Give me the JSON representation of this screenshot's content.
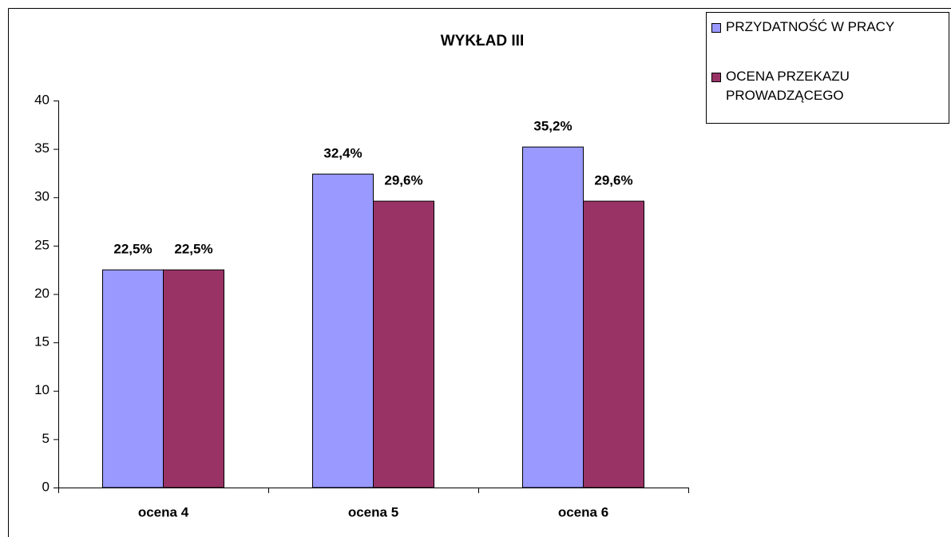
{
  "chart_data": {
    "type": "bar",
    "title": "WYKŁAD III",
    "categories": [
      "ocena 4",
      "ocena 5",
      "ocena 6"
    ],
    "series": [
      {
        "name": "PRZYDATNOŚĆ W PRACY",
        "color": "#9999ff",
        "values": [
          22.5,
          32.4,
          35.2
        ],
        "value_labels": [
          "22,5%",
          "32,4%",
          "35,2%"
        ]
      },
      {
        "name": "OCENA PRZEKAZU PROWADZĄCEGO",
        "color": "#993366",
        "values": [
          22.5,
          29.6,
          29.6
        ],
        "value_labels": [
          "22,5%",
          "29,6%",
          "29,6%"
        ]
      }
    ],
    "ylim": [
      0,
      40
    ],
    "yticks": [
      0,
      5,
      10,
      15,
      20,
      25,
      30,
      35,
      40
    ],
    "grid": false,
    "legend": "top-right"
  }
}
